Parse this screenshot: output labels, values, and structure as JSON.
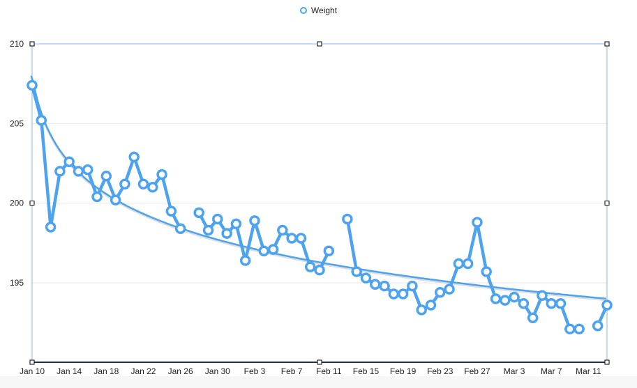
{
  "legend": {
    "series_label": "Weight"
  },
  "colors": {
    "series": "#4da3ef",
    "trend": "#4da3ef",
    "axis_frame": "#8fb2f0",
    "grid": "#e6e6e6"
  },
  "chart_data": {
    "type": "line",
    "title": "",
    "xlabel": "",
    "ylabel": "",
    "ylim": [
      190,
      210
    ],
    "yticks": [
      195,
      200,
      205,
      210
    ],
    "grid": true,
    "legend_position": "top",
    "x_start": "Jan 10",
    "x_tick_labels": [
      "Jan 10",
      "Jan 14",
      "Jan 18",
      "Jan 22",
      "Jan 26",
      "Jan 30",
      "Feb 3",
      "Feb 7",
      "Feb 11",
      "Feb 15",
      "Feb 19",
      "Feb 23",
      "Feb 27",
      "Mar 3",
      "Mar 7",
      "Mar 11"
    ],
    "series": [
      {
        "name": "Weight",
        "points": [
          {
            "day": 0,
            "date": "Jan 10",
            "value": 207.4
          },
          {
            "day": 1,
            "date": "Jan 11",
            "value": 205.2
          },
          {
            "day": 2,
            "date": "Jan 12",
            "value": 198.5
          },
          {
            "day": 3,
            "date": "Jan 13",
            "value": 202.0
          },
          {
            "day": 4,
            "date": "Jan 14",
            "value": 202.6
          },
          {
            "day": 5,
            "date": "Jan 15",
            "value": 202.0
          },
          {
            "day": 6,
            "date": "Jan 16",
            "value": 202.1
          },
          {
            "day": 7,
            "date": "Jan 17",
            "value": 200.4
          },
          {
            "day": 8,
            "date": "Jan 18",
            "value": 201.7
          },
          {
            "day": 9,
            "date": "Jan 19",
            "value": 200.2
          },
          {
            "day": 10,
            "date": "Jan 20",
            "value": 201.2
          },
          {
            "day": 11,
            "date": "Jan 21",
            "value": 202.9
          },
          {
            "day": 12,
            "date": "Jan 22",
            "value": 201.2
          },
          {
            "day": 13,
            "date": "Jan 23",
            "value": 201.0
          },
          {
            "day": 14,
            "date": "Jan 24",
            "value": 201.8
          },
          {
            "day": 15,
            "date": "Jan 25",
            "value": 199.5
          },
          {
            "day": 16,
            "date": "Jan 26",
            "value": 198.4
          },
          {
            "day": 18,
            "date": "Jan 28",
            "value": 199.4
          },
          {
            "day": 19,
            "date": "Jan 29",
            "value": 198.3
          },
          {
            "day": 20,
            "date": "Jan 30",
            "value": 199.0
          },
          {
            "day": 21,
            "date": "Jan 31",
            "value": 198.1
          },
          {
            "day": 22,
            "date": "Feb 1",
            "value": 198.7
          },
          {
            "day": 23,
            "date": "Feb 2",
            "value": 196.4
          },
          {
            "day": 24,
            "date": "Feb 3",
            "value": 198.9
          },
          {
            "day": 25,
            "date": "Feb 4",
            "value": 197.0
          },
          {
            "day": 26,
            "date": "Feb 5",
            "value": 197.1
          },
          {
            "day": 27,
            "date": "Feb 6",
            "value": 198.3
          },
          {
            "day": 28,
            "date": "Feb 7",
            "value": 197.8
          },
          {
            "day": 29,
            "date": "Feb 8",
            "value": 197.8
          },
          {
            "day": 30,
            "date": "Feb 9",
            "value": 196.0
          },
          {
            "day": 31,
            "date": "Feb 10",
            "value": 195.8
          },
          {
            "day": 32,
            "date": "Feb 11",
            "value": 197.0
          },
          {
            "day": 34,
            "date": "Feb 13",
            "value": 199.0
          },
          {
            "day": 35,
            "date": "Feb 14",
            "value": 195.7
          },
          {
            "day": 36,
            "date": "Feb 15",
            "value": 195.3
          },
          {
            "day": 37,
            "date": "Feb 16",
            "value": 194.9
          },
          {
            "day": 38,
            "date": "Feb 17",
            "value": 194.8
          },
          {
            "day": 39,
            "date": "Feb 18",
            "value": 194.3
          },
          {
            "day": 40,
            "date": "Feb 19",
            "value": 194.3
          },
          {
            "day": 41,
            "date": "Feb 20",
            "value": 194.8
          },
          {
            "day": 42,
            "date": "Feb 21",
            "value": 193.3
          },
          {
            "day": 43,
            "date": "Feb 22",
            "value": 193.6
          },
          {
            "day": 44,
            "date": "Feb 23",
            "value": 194.4
          },
          {
            "day": 45,
            "date": "Feb 24",
            "value": 194.6
          },
          {
            "day": 46,
            "date": "Feb 25",
            "value": 196.2
          },
          {
            "day": 47,
            "date": "Feb 26",
            "value": 196.2
          },
          {
            "day": 48,
            "date": "Feb 27",
            "value": 198.8
          },
          {
            "day": 49,
            "date": "Feb 28",
            "value": 195.7
          },
          {
            "day": 50,
            "date": "Mar 1",
            "value": 194.0
          },
          {
            "day": 51,
            "date": "Mar 2",
            "value": 193.9
          },
          {
            "day": 52,
            "date": "Mar 3",
            "value": 194.1
          },
          {
            "day": 53,
            "date": "Mar 4",
            "value": 193.7
          },
          {
            "day": 54,
            "date": "Mar 5",
            "value": 192.8
          },
          {
            "day": 55,
            "date": "Mar 6",
            "value": 194.2
          },
          {
            "day": 56,
            "date": "Mar 7",
            "value": 193.7
          },
          {
            "day": 57,
            "date": "Mar 8",
            "value": 193.7
          },
          {
            "day": 58,
            "date": "Mar 9",
            "value": 192.1
          },
          {
            "day": 59,
            "date": "Mar 10",
            "value": 192.1
          },
          {
            "day": 61,
            "date": "Mar 12",
            "value": 192.3
          },
          {
            "day": 62,
            "date": "Mar 13",
            "value": 193.6
          }
        ]
      }
    ],
    "trendline": {
      "type": "logarithmic",
      "start_value": 208.0,
      "end_value": 194.0
    }
  }
}
